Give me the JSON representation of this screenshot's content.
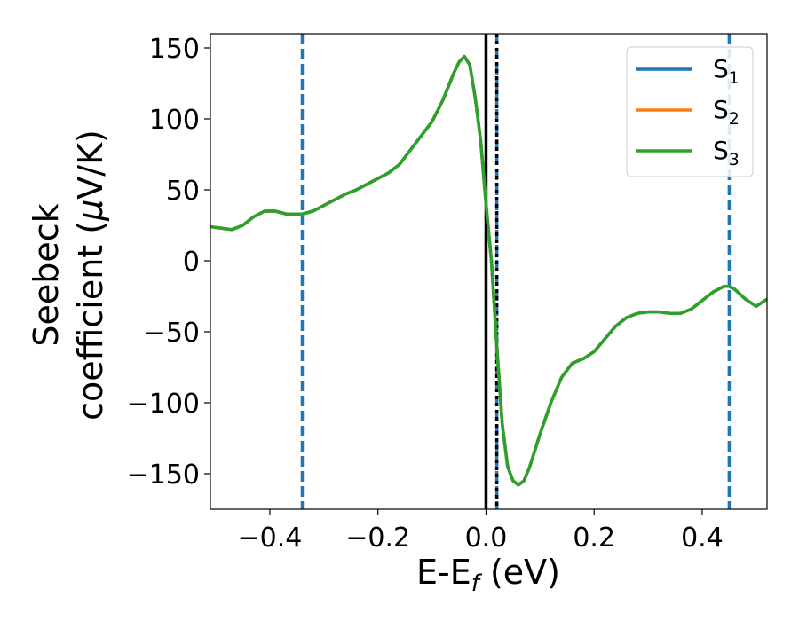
{
  "chart_data": {
    "type": "line",
    "title": "",
    "xlabel": {
      "main": "E-E",
      "sub": "f",
      "tail": " (eV)"
    },
    "ylabel": {
      "line1": "Seebeck",
      "line2_a": "coefficient  (",
      "line2_mu": "μ",
      "line2_b": "V/K)"
    },
    "xlim": [
      -0.51,
      0.52
    ],
    "ylim": [
      -175,
      160
    ],
    "xticks": [
      -0.4,
      -0.2,
      0.0,
      0.2,
      0.4
    ],
    "xtick_labels": [
      "−0.4",
      "−0.2",
      "0.0",
      "0.2",
      "0.4"
    ],
    "yticks": [
      150,
      100,
      50,
      0,
      -50,
      -100,
      -150
    ],
    "ytick_labels": [
      "150",
      "100",
      "50",
      "0",
      "−50",
      "−100",
      "−150"
    ],
    "grid": false,
    "legend_position": "top-right",
    "x": [
      -0.51,
      -0.49,
      -0.47,
      -0.45,
      -0.43,
      -0.41,
      -0.39,
      -0.37,
      -0.35,
      -0.34,
      -0.32,
      -0.3,
      -0.28,
      -0.26,
      -0.24,
      -0.22,
      -0.2,
      -0.18,
      -0.16,
      -0.14,
      -0.12,
      -0.1,
      -0.08,
      -0.06,
      -0.05,
      -0.04,
      -0.03,
      -0.02,
      -0.01,
      0.0,
      0.01,
      0.02,
      0.03,
      0.04,
      0.05,
      0.06,
      0.07,
      0.08,
      0.1,
      0.12,
      0.14,
      0.16,
      0.18,
      0.2,
      0.22,
      0.24,
      0.26,
      0.28,
      0.3,
      0.32,
      0.34,
      0.36,
      0.38,
      0.4,
      0.42,
      0.44,
      0.45,
      0.46,
      0.48,
      0.5,
      0.52
    ],
    "series": [
      {
        "name": "S1",
        "name_main": "S",
        "name_sub": "1",
        "color": "#1f77b4",
        "values": [
          24,
          23,
          22,
          25,
          31,
          35,
          35,
          33,
          33,
          33,
          35,
          39,
          43,
          47,
          50,
          54,
          58,
          62,
          68,
          78,
          88,
          98,
          113,
          132,
          140,
          144,
          138,
          115,
          85,
          40,
          0,
          -60,
          -115,
          -145,
          -155,
          -158,
          -155,
          -146,
          -122,
          -100,
          -82,
          -72,
          -69,
          -64,
          -55,
          -46,
          -40,
          -37,
          -36,
          -36,
          -37,
          -37,
          -34,
          -28,
          -22,
          -18,
          -18,
          -20,
          -27,
          -32,
          -27
        ]
      },
      {
        "name": "S2",
        "name_main": "S",
        "name_sub": "2",
        "color": "#ff7f0e",
        "values": [
          24,
          23,
          22,
          25,
          31,
          35,
          35,
          33,
          33,
          33,
          35,
          39,
          43,
          47,
          50,
          54,
          58,
          62,
          68,
          78,
          88,
          98,
          113,
          132,
          140,
          144,
          138,
          115,
          85,
          40,
          0,
          -60,
          -115,
          -145,
          -155,
          -158,
          -155,
          -146,
          -122,
          -100,
          -82,
          -72,
          -69,
          -64,
          -55,
          -46,
          -40,
          -37,
          -36,
          -36,
          -37,
          -37,
          -34,
          -28,
          -22,
          -18,
          -18,
          -20,
          -27,
          -32,
          -27
        ]
      },
      {
        "name": "S3",
        "name_main": "S",
        "name_sub": "3",
        "color": "#2ca02c",
        "values": [
          24,
          23,
          22,
          25,
          31,
          35,
          35,
          33,
          33,
          33,
          35,
          39,
          43,
          47,
          50,
          54,
          58,
          62,
          68,
          78,
          88,
          98,
          113,
          132,
          140,
          144,
          138,
          115,
          85,
          40,
          0,
          -60,
          -115,
          -145,
          -155,
          -158,
          -155,
          -146,
          -122,
          -100,
          -82,
          -72,
          -69,
          -64,
          -55,
          -46,
          -40,
          -37,
          -36,
          -36,
          -37,
          -37,
          -34,
          -28,
          -22,
          -18,
          -18,
          -20,
          -27,
          -32,
          -27
        ]
      }
    ],
    "vlines": [
      {
        "x": 0.0,
        "style": "solid",
        "color": "#000000"
      },
      {
        "x": 0.02,
        "style": "dashed",
        "color": "#1f77b4"
      },
      {
        "x": 0.02,
        "style": "dotted",
        "color": "#000000"
      },
      {
        "x": -0.34,
        "style": "dashed",
        "color": "#1f77b4"
      },
      {
        "x": 0.45,
        "style": "dashed",
        "color": "#1f77b4"
      }
    ]
  }
}
